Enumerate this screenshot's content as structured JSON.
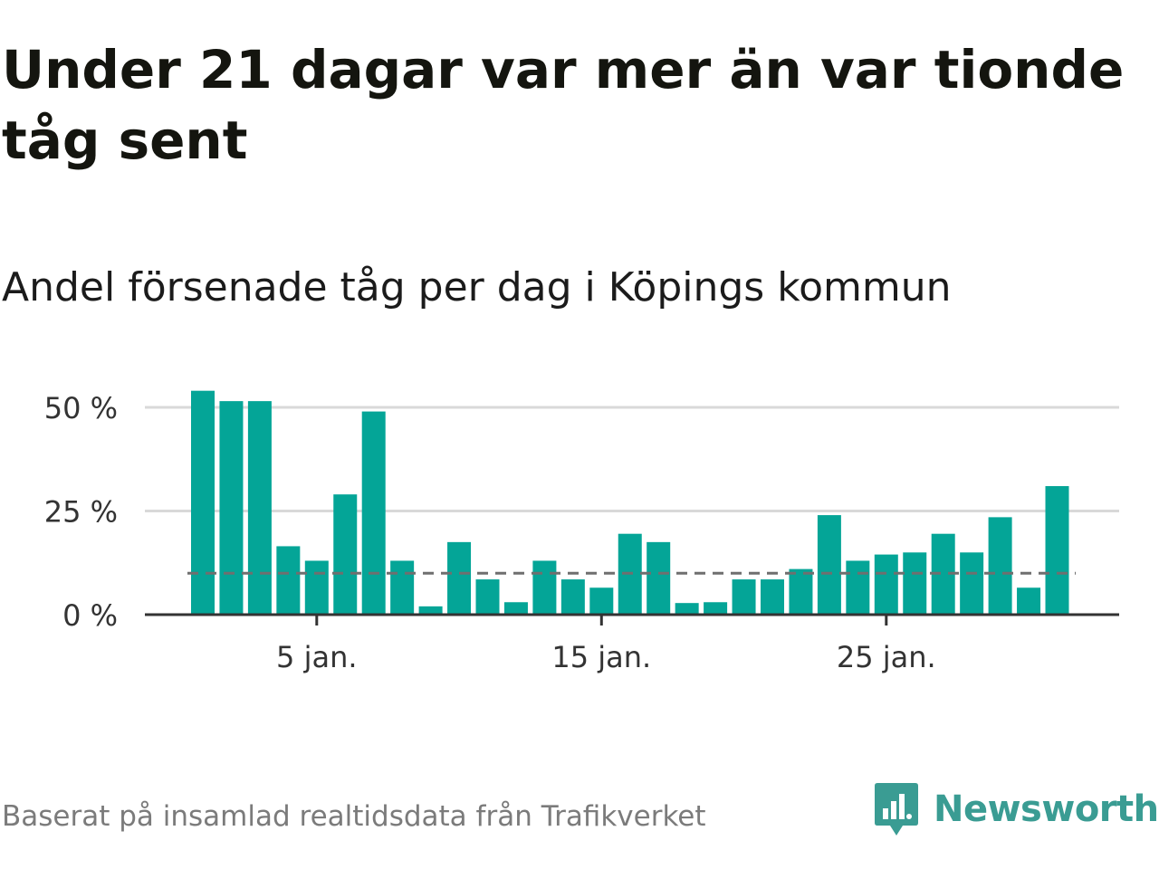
{
  "title": "Under 21 dagar var mer än var tionde tåg sent",
  "subtitle": "Andel försenade tåg per dag i Köpings kommun",
  "footer": "Baserat på insamlad realtidsdata från Trafikverket",
  "brand": "Newsworthy",
  "colors": {
    "bar": "#04a597",
    "reference_line": "#6f6f6f",
    "grid": "#d9d9d9",
    "axis": "#333333",
    "brand": "#3a9c93"
  },
  "chart_data": {
    "type": "bar",
    "x": [
      1,
      2,
      3,
      4,
      5,
      6,
      7,
      8,
      9,
      10,
      11,
      12,
      13,
      14,
      15,
      16,
      17,
      18,
      19,
      20,
      21,
      22,
      23,
      24,
      25,
      26,
      27,
      28,
      29,
      30,
      31
    ],
    "values": [
      54,
      51.5,
      51.5,
      16.5,
      13,
      29,
      49,
      13,
      2,
      17.5,
      8.5,
      3,
      13,
      8.5,
      6.5,
      19.5,
      17.5,
      2.8,
      3,
      8.5,
      8.5,
      11,
      24,
      13,
      14.5,
      15,
      19.5,
      15,
      23.5,
      6.5,
      31
    ],
    "reference_value": 10,
    "ylim": [
      0,
      55
    ],
    "yticks": [
      0,
      25,
      50
    ],
    "ytick_labels": [
      "0 %",
      "25 %",
      "50 %"
    ],
    "xticks": [
      5,
      15,
      25
    ],
    "xtick_labels": [
      "5 jan.",
      "15 jan.",
      "25 jan."
    ],
    "grid": true
  }
}
